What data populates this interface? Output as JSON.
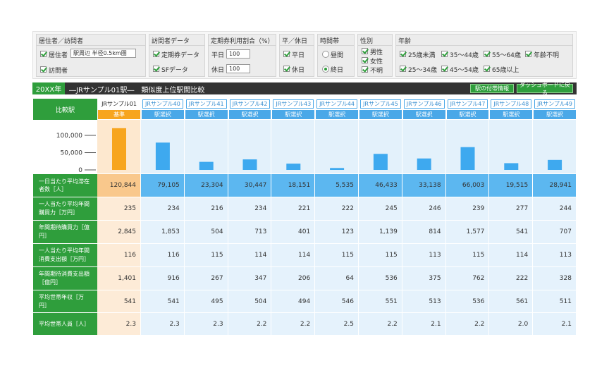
{
  "filters": {
    "residence": {
      "title": "居住者／訪問者",
      "options": [
        "居住者",
        "訪問者"
      ],
      "area": "駅周辺 半径0.5km圏"
    },
    "visitor_data": {
      "title": "訪問者データ",
      "options": [
        "定期券データ",
        "SFデータ"
      ]
    },
    "commuter_ratio": {
      "title": "定期券利用割合（%）",
      "rows": [
        {
          "label": "平日",
          "value": "100"
        },
        {
          "label": "休日",
          "value": "100"
        }
      ]
    },
    "day_type": {
      "title": "平／休日",
      "options": [
        "平日",
        "休日"
      ]
    },
    "time": {
      "title": "時間帯",
      "options": [
        "昼間",
        "終日"
      ]
    },
    "gender": {
      "title": "性別",
      "options": [
        "男性",
        "女性",
        "不明"
      ]
    },
    "age": {
      "title": "年齢",
      "options": [
        "25歳未満",
        "35～44歳",
        "55～64歳",
        "年齢不明",
        "25～34歳",
        "45～54歳",
        "65歳以上"
      ]
    }
  },
  "header": {
    "year": "20XX年",
    "title": "―JRサンプル01駅―　類似度上位駅間比較",
    "buttons": [
      "駅の付帯情報",
      "ダッシュボードに戻る"
    ]
  },
  "table": {
    "corner": "比較駅",
    "tags": [
      "基準",
      "駅選択",
      "駅選択",
      "駅選択",
      "駅選択",
      "駅選択",
      "駅選択",
      "駅選択",
      "駅選択",
      "駅選択",
      "駅選択"
    ],
    "first_row_label": "一日当たり平均滞在者数［人］",
    "rows": [
      {
        "label": "一人当たり平均年間購買力［万円］",
        "values": [
          "235",
          "234",
          "216",
          "234",
          "221",
          "222",
          "245",
          "246",
          "239",
          "277",
          "244"
        ]
      },
      {
        "label": "年間期待購買力［億円］",
        "values": [
          "2,845",
          "1,853",
          "504",
          "713",
          "401",
          "123",
          "1,139",
          "814",
          "1,577",
          "541",
          "707"
        ]
      },
      {
        "label": "一人当たり平均年間消費支出額［万円］",
        "values": [
          "116",
          "116",
          "115",
          "114",
          "114",
          "115",
          "115",
          "113",
          "115",
          "114",
          "113"
        ]
      },
      {
        "label": "年間期待消費支出額［億円］",
        "values": [
          "1,401",
          "916",
          "267",
          "347",
          "206",
          "64",
          "536",
          "375",
          "762",
          "222",
          "328"
        ]
      },
      {
        "label": "平均世帯年収［万円］",
        "values": [
          "541",
          "541",
          "495",
          "504",
          "494",
          "546",
          "551",
          "513",
          "536",
          "561",
          "511"
        ]
      },
      {
        "label": "平均世帯人員［人］",
        "values": [
          "2.3",
          "2.3",
          "2.3",
          "2.2",
          "2.2",
          "2.5",
          "2.2",
          "2.1",
          "2.2",
          "2.0",
          "2.1"
        ]
      }
    ]
  },
  "chart_data": {
    "type": "bar",
    "categories": [
      "JRサンプル01",
      "JRサンプル40",
      "JRサンプル41",
      "JRサンプル42",
      "JRサンプル43",
      "JRサンプル44",
      "JRサンプル45",
      "JRサンプル46",
      "JRサンプル47",
      "JRサンプル48",
      "JRサンプル49"
    ],
    "values": [
      120844,
      79105,
      23304,
      30447,
      18151,
      5535,
      46433,
      33138,
      66003,
      19515,
      28941
    ],
    "value_labels": [
      "120,844",
      "79,105",
      "23,304",
      "30,447",
      "18,151",
      "5,535",
      "46,433",
      "33,138",
      "66,003",
      "19,515",
      "28,941"
    ],
    "colors": [
      "#f7a51e",
      "#3ea9ef"
    ],
    "ylim": [
      0,
      145000
    ],
    "yticks": [
      0,
      {
        "value": 50000,
        "label": "50,000"
      },
      {
        "value": 100000,
        "label": "100,000"
      }
    ]
  }
}
